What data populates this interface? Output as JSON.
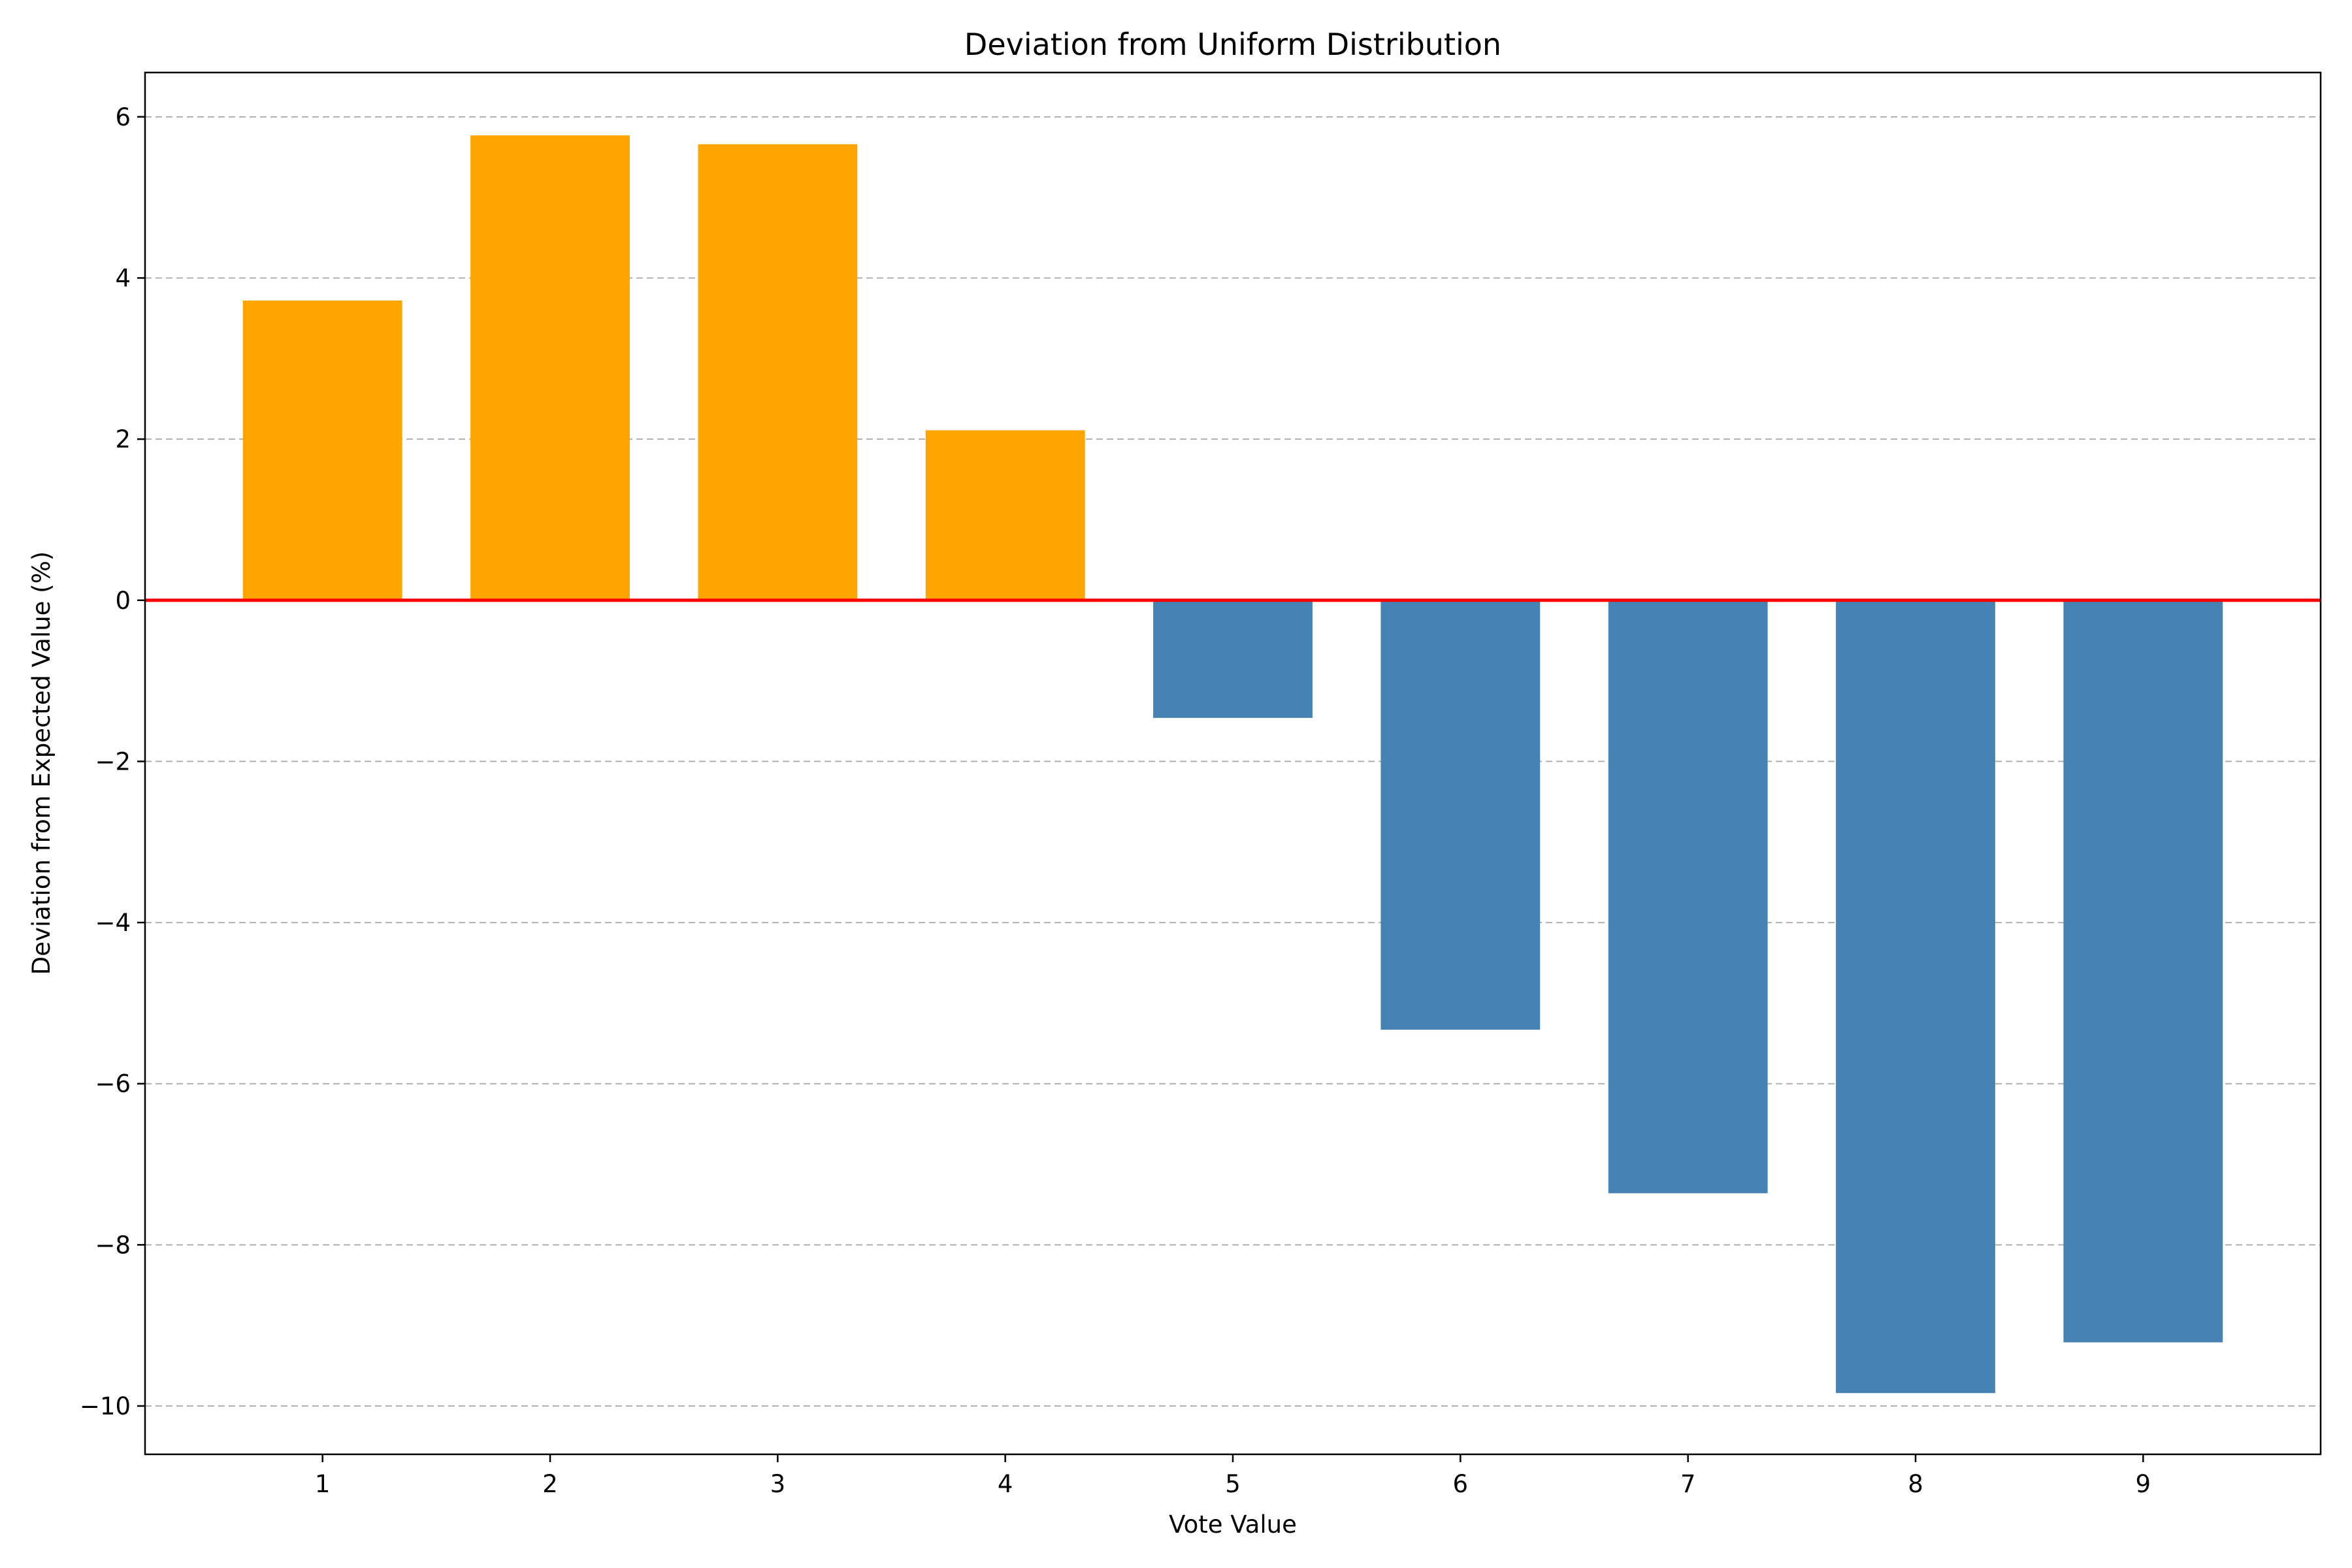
{
  "chart_data": {
    "type": "bar",
    "title": "Deviation from Uniform Distribution",
    "xlabel": "Vote Value",
    "ylabel": "Deviation from Expected Value (%)",
    "categories": [
      "1",
      "2",
      "3",
      "4",
      "5",
      "6",
      "7",
      "8",
      "9"
    ],
    "values": [
      3.72,
      5.77,
      5.66,
      2.11,
      -1.46,
      -5.33,
      -7.36,
      -9.84,
      -9.21
    ],
    "ylim": [
      -10.6,
      6.55
    ],
    "yticks": [
      6,
      4,
      2,
      0,
      -2,
      -4,
      -6,
      -8,
      -10
    ],
    "ytick_labels": [
      "6",
      "4",
      "2",
      "0",
      "−2",
      "−4",
      "−6",
      "−8",
      "−10"
    ],
    "grid": {
      "axis": "y",
      "style": "dashed",
      "color": "#b0b0b0"
    },
    "reference_line": {
      "value": 0,
      "color": "#ff0000"
    },
    "colors": {
      "positive": "#ffa500",
      "negative": "#4682b4"
    }
  }
}
